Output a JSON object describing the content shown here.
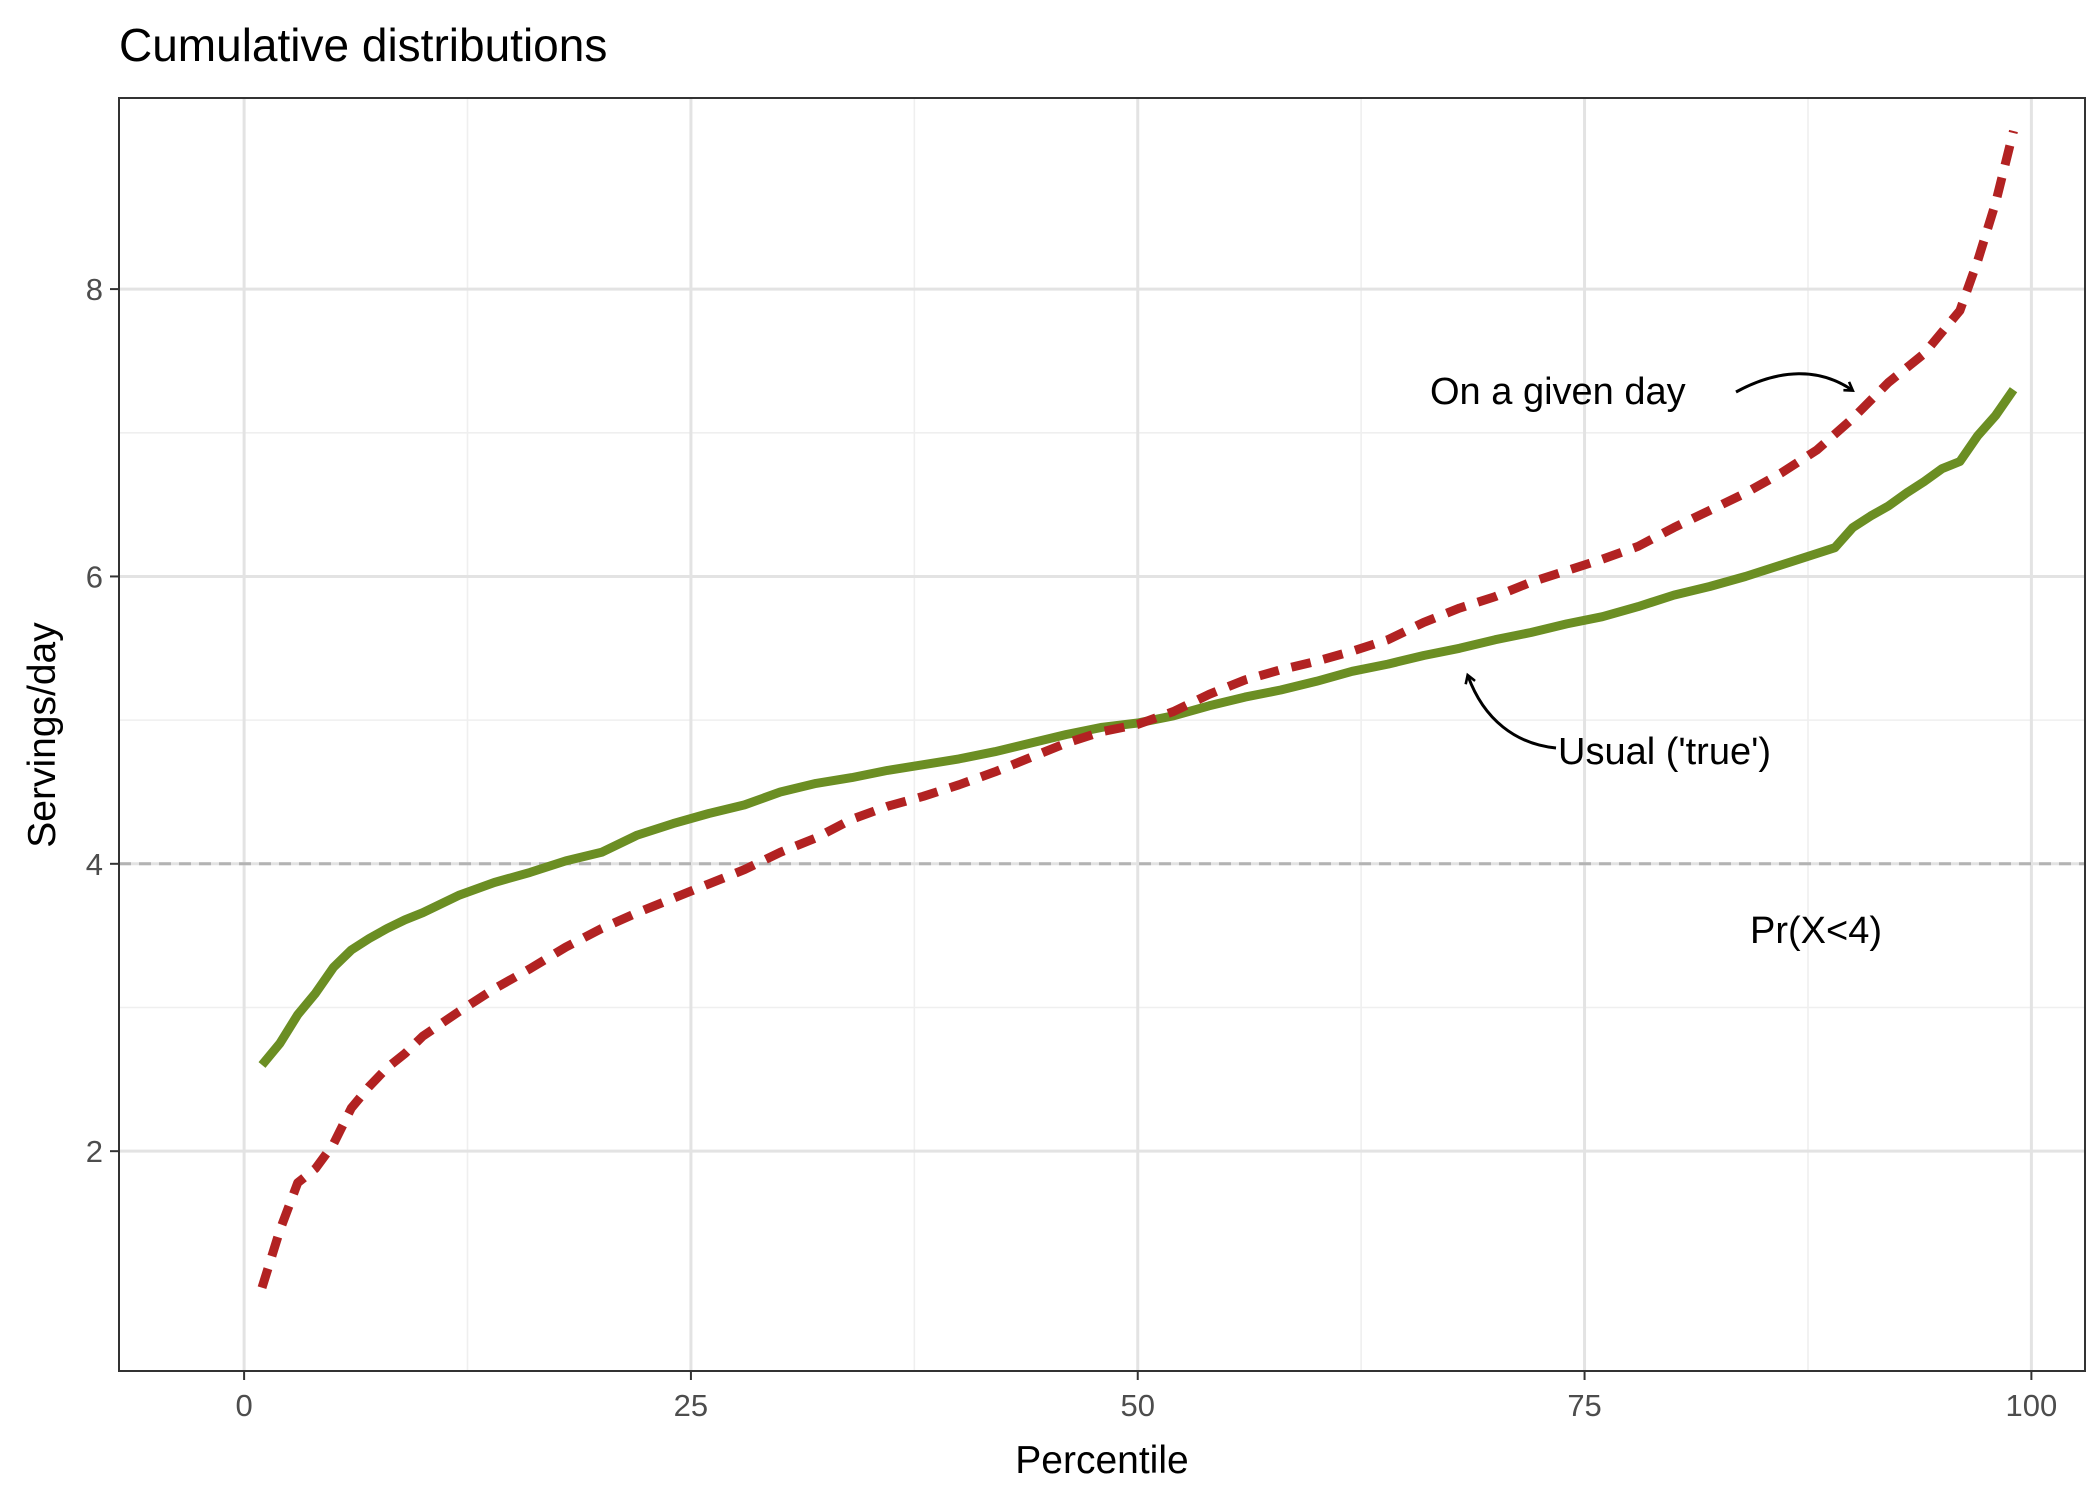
{
  "chart_data": {
    "type": "line",
    "title": "Cumulative distributions",
    "xlabel": "Percentile",
    "ylabel": "Servings/day",
    "xlim": [
      -7,
      103
    ],
    "ylim": [
      0.47,
      9.33
    ],
    "x_ticks": [
      0,
      25,
      50,
      75,
      100
    ],
    "y_ticks": [
      2,
      4,
      6,
      8
    ],
    "grid": true,
    "legend": "none",
    "reference_line": {
      "y": 4,
      "style": "dashed",
      "color": "#b3b3b3"
    },
    "series": [
      {
        "color": "#6b8e23",
        "style": "solid",
        "x": [
          1,
          2,
          3,
          4,
          5,
          6,
          7,
          8,
          9,
          10,
          12,
          14,
          16,
          18,
          20,
          22,
          24,
          26,
          28,
          30,
          32,
          34,
          36,
          38,
          40,
          42,
          44,
          46,
          48,
          50,
          52,
          54,
          56,
          58,
          60,
          62,
          64,
          66,
          68,
          70,
          72,
          74,
          76,
          78,
          80,
          82,
          84,
          86,
          88,
          89,
          90,
          91,
          92,
          93,
          94,
          95,
          96,
          97,
          98,
          99
        ],
        "y": [
          2.6,
          2.75,
          2.95,
          3.1,
          3.28,
          3.4,
          3.48,
          3.55,
          3.61,
          3.66,
          3.78,
          3.87,
          3.94,
          4.02,
          4.08,
          4.2,
          4.28,
          4.35,
          4.41,
          4.5,
          4.56,
          4.6,
          4.65,
          4.69,
          4.73,
          4.78,
          4.84,
          4.9,
          4.95,
          4.98,
          5.03,
          5.1,
          5.16,
          5.21,
          5.27,
          5.34,
          5.39,
          5.45,
          5.5,
          5.56,
          5.61,
          5.67,
          5.72,
          5.79,
          5.87,
          5.93,
          6.0,
          6.08,
          6.16,
          6.2,
          6.34,
          6.42,
          6.49,
          6.58,
          6.66,
          6.75,
          6.8,
          6.98,
          7.12,
          7.3
        ]
      },
      {
        "color": "#b22222",
        "style": "dashed",
        "x": [
          1,
          2,
          3,
          4,
          5,
          6,
          7,
          8,
          9,
          10,
          12,
          14,
          16,
          18,
          20,
          22,
          24,
          26,
          28,
          30,
          32,
          34,
          36,
          38,
          40,
          42,
          44,
          46,
          48,
          50,
          52,
          54,
          56,
          58,
          60,
          62,
          64,
          66,
          68,
          70,
          72,
          74,
          76,
          78,
          80,
          82,
          84,
          86,
          88,
          90,
          92,
          94,
          96,
          97,
          98,
          99
        ],
        "y": [
          1.05,
          1.45,
          1.78,
          1.88,
          2.05,
          2.3,
          2.45,
          2.58,
          2.68,
          2.8,
          2.97,
          3.13,
          3.27,
          3.42,
          3.55,
          3.66,
          3.76,
          3.86,
          3.96,
          4.08,
          4.18,
          4.31,
          4.4,
          4.47,
          4.55,
          4.64,
          4.74,
          4.84,
          4.92,
          4.97,
          5.06,
          5.18,
          5.28,
          5.35,
          5.41,
          5.48,
          5.56,
          5.68,
          5.78,
          5.86,
          5.96,
          6.04,
          6.12,
          6.21,
          6.34,
          6.46,
          6.58,
          6.72,
          6.88,
          7.1,
          7.35,
          7.55,
          7.85,
          8.2,
          8.6,
          9.1
        ]
      }
    ],
    "annotations": {
      "given_day": "On a given day",
      "usual": "Usual ('true')",
      "prob": "Pr(X<4)"
    }
  }
}
